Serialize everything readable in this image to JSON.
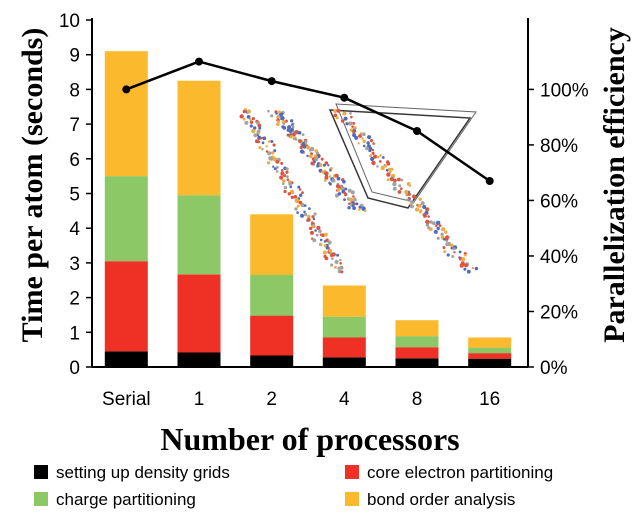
{
  "chart_data": {
    "type": "bar",
    "stacked": true,
    "categories": [
      "Serial",
      "1",
      "2",
      "4",
      "8",
      "16"
    ],
    "series": [
      {
        "name": "setting up density grids",
        "color": "#000000",
        "values": [
          0.45,
          0.42,
          0.33,
          0.28,
          0.25,
          0.24
        ]
      },
      {
        "name": "core electron partitioning",
        "color": "#ee3124",
        "values": [
          2.6,
          2.25,
          1.15,
          0.57,
          0.32,
          0.16
        ]
      },
      {
        "name": "charge partitioning",
        "color": "#8dc866",
        "values": [
          2.45,
          2.28,
          1.17,
          0.6,
          0.32,
          0.16
        ]
      },
      {
        "name": "bond order analysis",
        "color": "#fbb92d",
        "values": [
          3.6,
          3.3,
          1.75,
          0.9,
          0.46,
          0.29
        ]
      }
    ],
    "ylabel": "Time per atom (seconds)",
    "xlabel": "Number of processors",
    "ylim": [
      0,
      10
    ],
    "yticks": [
      "0",
      "1",
      "2",
      "3",
      "4",
      "5",
      "6",
      "7",
      "8",
      "9",
      "10"
    ],
    "secondary_axis": {
      "label": "Parallelization efficiency",
      "ylim": [
        0,
        125
      ],
      "ticks": [
        "0%",
        "20%",
        "40%",
        "60%",
        "80%",
        "100%"
      ],
      "tick_values": [
        0,
        20,
        40,
        60,
        80,
        100
      ],
      "series": {
        "values": [
          100,
          110,
          103,
          97,
          85,
          67
        ],
        "color": "#000000"
      }
    },
    "legend_position": "bottom",
    "grid": false
  }
}
